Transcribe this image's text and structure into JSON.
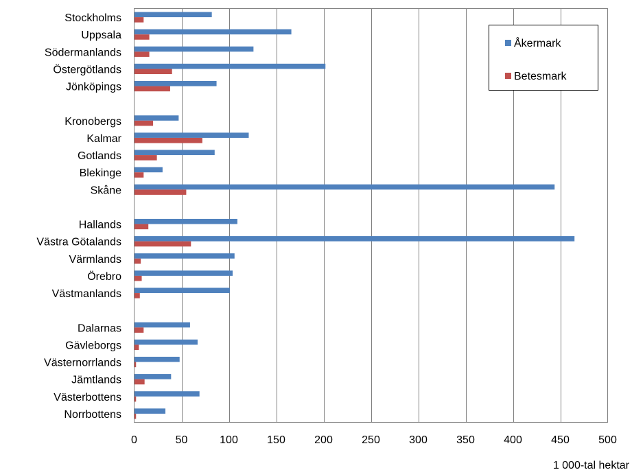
{
  "chart_data": {
    "type": "bar",
    "orientation": "horizontal",
    "title": "",
    "xlabel": "1 000-tal hektar",
    "ylabel": "",
    "xlim": [
      0,
      500
    ],
    "xticks": [
      0,
      50,
      100,
      150,
      200,
      250,
      300,
      350,
      400,
      450,
      500
    ],
    "grid": "vertical lines",
    "legend_position": "top-right",
    "categories": [
      "Stockholms",
      "Uppsala",
      "Södermanlands",
      "Östergötlands",
      "Jönköpings",
      "",
      "Kronobergs",
      "Kalmar",
      "Gotlands",
      "Blekinge",
      "Skåne",
      "",
      "Hallands",
      "Västra Götalands",
      "Värmlands",
      "Örebro",
      "Västmanlands",
      "",
      "Dalarnas",
      "Gävleborgs",
      "Västernorrlands",
      "Jämtlands",
      "Västerbottens",
      "Norrbottens"
    ],
    "series": [
      {
        "name": "Åkermark",
        "color": "#4F81BD",
        "values": [
          82,
          166,
          126,
          202,
          87,
          null,
          47,
          121,
          85,
          30,
          444,
          null,
          109,
          465,
          106,
          104,
          101,
          null,
          59,
          67,
          48,
          39,
          69,
          33
        ]
      },
      {
        "name": "Betesmark",
        "color": "#C0504D",
        "values": [
          10,
          16,
          16,
          40,
          38,
          null,
          20,
          72,
          24,
          10,
          55,
          null,
          15,
          60,
          7,
          8,
          6,
          null,
          10,
          5,
          2,
          11,
          2,
          2
        ]
      }
    ]
  }
}
